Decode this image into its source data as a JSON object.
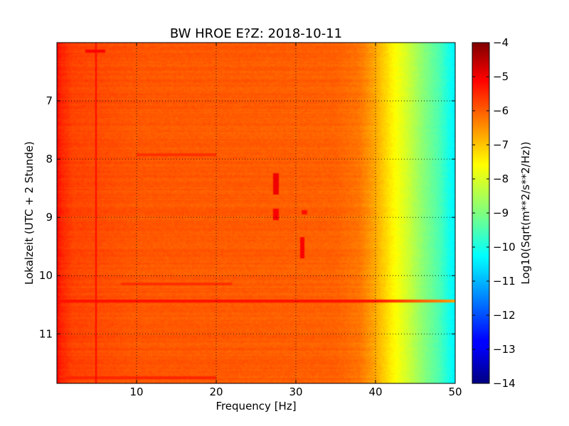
{
  "chart_data": {
    "type": "heatmap",
    "title": "BW HROE E?Z: 2018-10-11",
    "xlabel": "Frequency [Hz]",
    "ylabel": "Lokalzeit (UTC + 2 Stunde)",
    "xlim": [
      0,
      50
    ],
    "ylim": [
      6,
      11.85
    ],
    "x_ticks": [
      10,
      20,
      30,
      40,
      50
    ],
    "y_ticks": [
      7,
      8,
      9,
      10,
      11
    ],
    "grid": true,
    "colormap": "jet",
    "colorbar": {
      "label": "Log10(Sqrt(m**2/s**2/Hz))",
      "range": [
        -14,
        -4
      ],
      "ticks": [
        -4,
        -5,
        -6,
        -7,
        -8,
        -9,
        -10,
        -11,
        -12,
        -13,
        -14
      ]
    },
    "background_profile": {
      "description_unit": "log10 amplitude vs frequency (Hz)",
      "points": [
        [
          0,
          -5.3
        ],
        [
          0.5,
          -5.6
        ],
        [
          2,
          -5.9
        ],
        [
          10,
          -6.1
        ],
        [
          25,
          -6.15
        ],
        [
          35,
          -6.2
        ],
        [
          38,
          -6.4
        ],
        [
          40,
          -6.9
        ],
        [
          42,
          -7.6
        ],
        [
          44,
          -8.2
        ],
        [
          46,
          -8.9
        ],
        [
          48,
          -9.5
        ],
        [
          50,
          -10.4
        ]
      ]
    },
    "features": [
      {
        "kind": "band",
        "time": 10.43,
        "f_from": 0,
        "f_to": 50,
        "value": -5.4
      },
      {
        "kind": "band",
        "time": 6.15,
        "f_from": 3.5,
        "f_to": 6,
        "value": -5.2
      },
      {
        "kind": "band",
        "time": 7.92,
        "f_from": 10,
        "f_to": 20,
        "value": -5.7
      },
      {
        "kind": "band",
        "time": 11.75,
        "f_from": 1,
        "f_to": 20,
        "value": -5.6
      },
      {
        "kind": "band",
        "time": 10.15,
        "f_from": 8,
        "f_to": 22,
        "value": -5.7
      },
      {
        "kind": "spot",
        "time_from": 8.25,
        "time_to": 8.6,
        "freq": 27.5,
        "value": -5.1
      },
      {
        "kind": "spot",
        "time_from": 8.85,
        "time_to": 9.05,
        "freq": 27.5,
        "value": -5.2
      },
      {
        "kind": "spot",
        "time_from": 9.35,
        "time_to": 9.7,
        "freq": 30.8,
        "value": -5.2
      },
      {
        "kind": "spot",
        "time_from": 8.88,
        "time_to": 8.96,
        "freq": 31.0,
        "value": -5.4
      },
      {
        "kind": "line",
        "freq": 4.9,
        "value": -5.3
      }
    ]
  }
}
